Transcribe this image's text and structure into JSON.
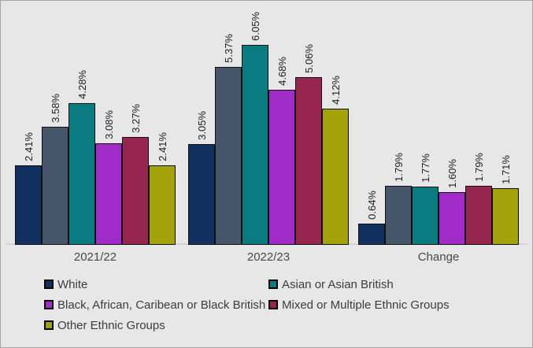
{
  "background_color": "#e7e7e7",
  "frame_border_color": "#a6a6a6",
  "chart_data": {
    "type": "bar",
    "categories": [
      "2021/22",
      "2022/23",
      "Change"
    ],
    "series": [
      {
        "name": "White",
        "color": "#12305F",
        "values": [
          2.41,
          3.05,
          0.64
        ]
      },
      {
        "name": "",
        "color": "#45566B",
        "values": [
          3.58,
          5.37,
          1.79
        ]
      },
      {
        "name": "Asian or Asian British",
        "color": "#0A7B81",
        "values": [
          4.28,
          6.05,
          1.77
        ]
      },
      {
        "name": "Black, African, Caribean or Black British",
        "color": "#A02BC7",
        "values": [
          3.08,
          4.68,
          1.6
        ]
      },
      {
        "name": "Mixed or Multiple Ethnic Groups",
        "color": "#97264E",
        "values": [
          3.27,
          5.06,
          1.79
        ]
      },
      {
        "name": "Other Ethnic Groups",
        "color": "#A3A20B",
        "values": [
          2.41,
          4.12,
          1.71
        ]
      }
    ],
    "data_labels": {
      "visible": true,
      "format": "0.00%",
      "orientation": "rotated-90",
      "values": [
        [
          "2.41%",
          "3.58%",
          "4.28%",
          "3.08%",
          "3.27%",
          "2.41%"
        ],
        [
          "3.05%",
          "5.37%",
          "6.05%",
          "4.68%",
          "5.06%",
          "4.12%"
        ],
        [
          "0.64%",
          "1.79%",
          "1.77%",
          "1.60%",
          "1.79%",
          "1.71%"
        ]
      ]
    },
    "ylim": [
      0,
      6.5
    ],
    "gridlines": false,
    "axis_line_color": "#d4d4d4",
    "legend": {
      "position": "bottom",
      "columns": 2,
      "entries": [
        {
          "label": "White",
          "color": "#12305F"
        },
        {
          "label": "Asian or Asian British",
          "color": "#0A7B81"
        },
        {
          "label": "Black, African, Caribean or Black British",
          "color": "#A02BC7"
        },
        {
          "label": "Mixed or Multiple Ethnic Groups",
          "color": "#97264E"
        },
        {
          "label": "Other Ethnic Groups",
          "color": "#A3A20B"
        }
      ]
    }
  }
}
